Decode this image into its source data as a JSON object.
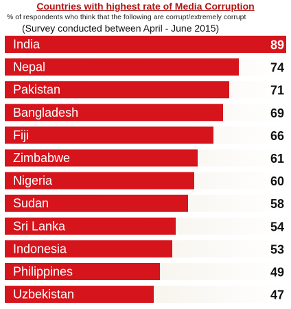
{
  "chart_data": {
    "type": "bar",
    "orientation": "horizontal",
    "title": "Countries with highest rate of Media Corruption",
    "subtitle": "% of respondents who think that the following are corrupt/extremely corrupt",
    "note": "(Survey conducted between April - June 2015)",
    "xlim": [
      0,
      89
    ],
    "categories": [
      "India",
      "Nepal",
      "Pakistan",
      "Bangladesh",
      "Fiji",
      "Zimbabwe",
      "Nigeria",
      "Sudan",
      "Sri Lanka",
      "Indonesia",
      "Philippines",
      "Uzbekistan"
    ],
    "values": [
      89,
      74,
      71,
      69,
      66,
      61,
      60,
      58,
      54,
      53,
      49,
      47
    ],
    "colors": {
      "bar": "#d6141c",
      "track": "#f3eee3",
      "title": "#b11313"
    },
    "grid": false,
    "legend": "none"
  }
}
